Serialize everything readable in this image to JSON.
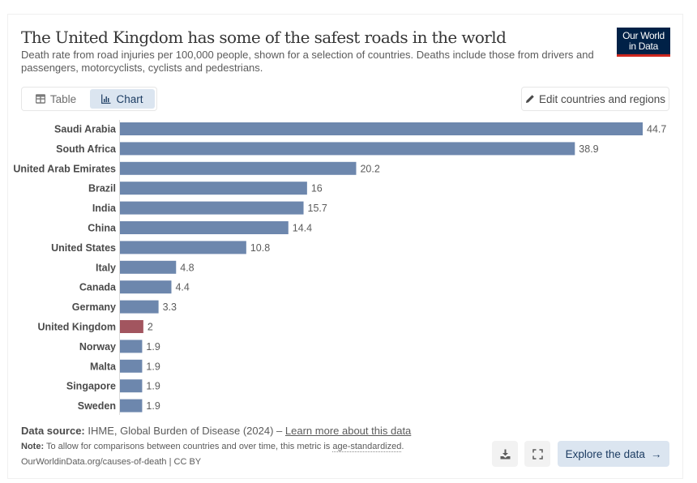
{
  "header": {
    "title": "The United Kingdom has some of the safest roads in the world",
    "subtitle": "Death rate from road injuries per 100,000 people, shown for a selection of countries. Deaths include those from drivers and passengers, motorcyclists, cyclists and pedestrians.",
    "logo_line1": "Our World",
    "logo_line2": "in Data"
  },
  "controls": {
    "tabs": [
      {
        "label": "Table",
        "icon": "table-icon",
        "active": false
      },
      {
        "label": "Chart",
        "icon": "bar-chart-icon",
        "active": true
      }
    ],
    "edit_button": "Edit countries and regions"
  },
  "colors": {
    "bar_default": "#6d87ad",
    "bar_highlight": "#a2555f",
    "label": "#4a4a4a",
    "value": "#5b5b5b"
  },
  "chart_data": {
    "type": "bar",
    "orientation": "horizontal",
    "title": "The United Kingdom has some of the safest roads in the world",
    "xlabel": "",
    "ylabel": "",
    "xlim": [
      0,
      44.7
    ],
    "grid": false,
    "categories": [
      "Saudi Arabia",
      "South Africa",
      "United Arab Emirates",
      "Brazil",
      "India",
      "China",
      "United States",
      "Italy",
      "Canada",
      "Germany",
      "United Kingdom",
      "Norway",
      "Malta",
      "Singapore",
      "Sweden"
    ],
    "values": [
      44.7,
      38.9,
      20.2,
      16,
      15.7,
      14.4,
      10.8,
      4.8,
      4.4,
      3.3,
      2,
      1.9,
      1.9,
      1.9,
      1.9
    ],
    "value_labels": [
      "44.7",
      "38.9",
      "20.2",
      "16",
      "15.7",
      "14.4",
      "10.8",
      "4.8",
      "4.4",
      "3.3",
      "2",
      "1.9",
      "1.9",
      "1.9",
      "1.9"
    ],
    "highlight": "United Kingdom"
  },
  "footer": {
    "source_label": "Data source:",
    "source_text": "IHME, Global Burden of Disease (2024) –",
    "source_link": "Learn more about this data",
    "note_label": "Note:",
    "note_text": "To allow for comparisons between countries and over time, this metric is",
    "note_link": "age-standardized",
    "note_end": ".",
    "url": "OurWorldinData.org/causes-of-death | CC BY",
    "explore_label": "Explore the data",
    "explore_arrow": "→"
  }
}
